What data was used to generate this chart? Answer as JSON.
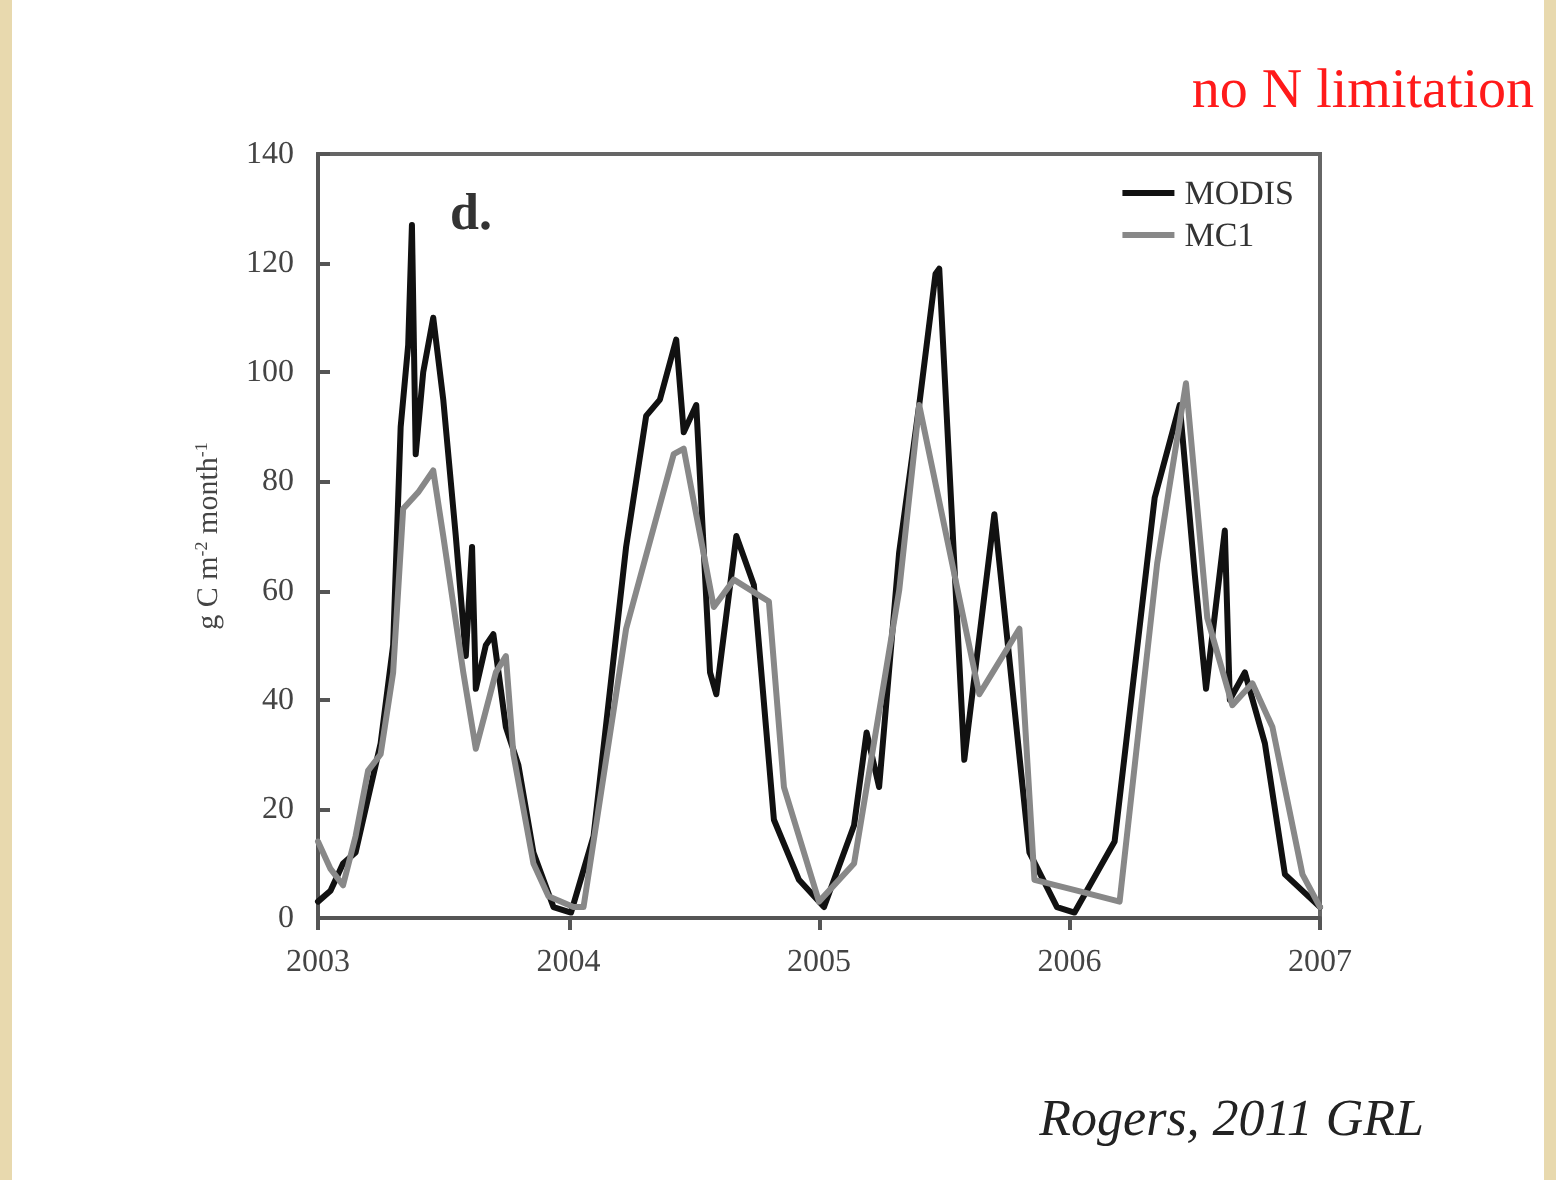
{
  "chart_data": {
    "type": "line",
    "title": "no N limitation",
    "ylabel": "g C m$^{-2}$ month$^{-1}$",
    "annotations": [
      "d.",
      "Rogers, 2011 GRL"
    ],
    "xlim": [
      2003,
      2007
    ],
    "xticks": [
      2003,
      2004,
      2005,
      2006,
      2007
    ],
    "ylim": [
      0,
      140
    ],
    "yticks": [
      0,
      20,
      40,
      60,
      80,
      100,
      120,
      140
    ],
    "grid": false,
    "legend": "top right",
    "marker": "none",
    "line_style": "solid",
    "series": [
      {
        "name": "MODIS",
        "color": "#111111",
        "x": [
          2003.0,
          2003.05,
          2003.1,
          2003.15,
          2003.2,
          2003.25,
          2003.3,
          2003.33,
          2003.36,
          2003.375,
          2003.39,
          2003.42,
          2003.46,
          2003.5,
          2003.55,
          2003.59,
          2003.615,
          2003.63,
          2003.67,
          2003.7,
          2003.75,
          2003.8,
          2003.86,
          2003.94,
          2004.01,
          2004.1,
          2004.23,
          2004.31,
          2004.365,
          2004.43,
          2004.46,
          2004.51,
          2004.565,
          2004.59,
          2004.67,
          2004.74,
          2004.82,
          2004.92,
          2005.02,
          2005.14,
          2005.19,
          2005.24,
          2005.32,
          2005.4,
          2005.465,
          2005.48,
          2005.58,
          2005.7,
          2005.84,
          2005.95,
          2006.02,
          2006.18,
          2006.34,
          2006.44,
          2006.5,
          2006.545,
          2006.62,
          2006.64,
          2006.7,
          2006.78,
          2006.86,
          2007.0
        ],
        "values": [
          3,
          5,
          10,
          12,
          22,
          32,
          50,
          90,
          105,
          127,
          85,
          100,
          110,
          95,
          70,
          48,
          68,
          42,
          50,
          52,
          35,
          28,
          12,
          2,
          1,
          15,
          68,
          92,
          95,
          106,
          89,
          94,
          45,
          41,
          70,
          61,
          18,
          7,
          2,
          17,
          34,
          24,
          67,
          94,
          118,
          119,
          29,
          74,
          12,
          2,
          1,
          14,
          77,
          94,
          63,
          42,
          71,
          40,
          45,
          32,
          8,
          2
        ]
      },
      {
        "name": "MC1",
        "color": "#888888",
        "x": [
          2003.0,
          2003.05,
          2003.1,
          2003.15,
          2003.2,
          2003.25,
          2003.3,
          2003.34,
          2003.4,
          2003.46,
          2003.5,
          2003.58,
          2003.63,
          2003.67,
          2003.71,
          2003.75,
          2003.78,
          2003.86,
          2003.92,
          2004.02,
          2004.06,
          2004.23,
          2004.42,
          2004.46,
          2004.58,
          2004.66,
          2004.8,
          2004.86,
          2005.0,
          2005.14,
          2005.32,
          2005.4,
          2005.64,
          2005.68,
          2005.8,
          2005.86,
          2006.03,
          2006.2,
          2006.35,
          2006.465,
          2006.55,
          2006.65,
          2006.73,
          2006.81,
          2006.93,
          2007.0
        ],
        "values": [
          14,
          9,
          6,
          15,
          27,
          30,
          45,
          75,
          78,
          82,
          70,
          45,
          31,
          38,
          45,
          48,
          30,
          10,
          4,
          2,
          2,
          53,
          85,
          86,
          57,
          62,
          58,
          24,
          3,
          10,
          60,
          94,
          41,
          44,
          53,
          7,
          5,
          3,
          65,
          98,
          55,
          39,
          43,
          35,
          8,
          2
        ]
      }
    ]
  }
}
